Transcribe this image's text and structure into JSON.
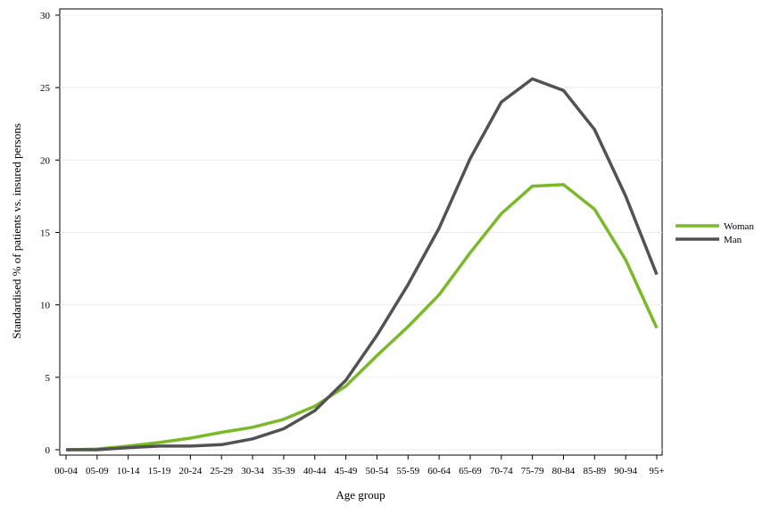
{
  "chart_data": {
    "type": "line",
    "xlabel": "Age group",
    "ylabel": "Standardised % of patients vs. insured persons",
    "ylim": [
      0,
      30
    ],
    "yticks": [
      "0",
      "5",
      "10",
      "15",
      "20",
      "25",
      "30"
    ],
    "grid": true,
    "legend_position": "right",
    "categories": [
      "00-04",
      "05-09",
      "10-14",
      "15-19",
      "20-24",
      "25-29",
      "30-34",
      "35-39",
      "40-44",
      "45-49",
      "50-54",
      "55-59",
      "60-64",
      "65-69",
      "70-74",
      "75-79",
      "80-84",
      "85-89",
      "90-94",
      "95+"
    ],
    "series": [
      {
        "name": "Woman",
        "color": "#7ab929",
        "values": [
          0.0,
          0.05,
          0.25,
          0.5,
          0.8,
          1.2,
          1.55,
          2.1,
          3.0,
          4.4,
          6.5,
          8.5,
          10.7,
          13.6,
          16.3,
          18.2,
          18.3,
          16.6,
          13.1,
          8.4
        ]
      },
      {
        "name": "Man",
        "color": "#525252",
        "values": [
          0.0,
          0.0,
          0.15,
          0.25,
          0.25,
          0.35,
          0.75,
          1.45,
          2.7,
          4.8,
          7.9,
          11.4,
          15.3,
          20.1,
          24.0,
          25.6,
          24.8,
          22.1,
          17.5,
          12.1
        ]
      }
    ]
  }
}
